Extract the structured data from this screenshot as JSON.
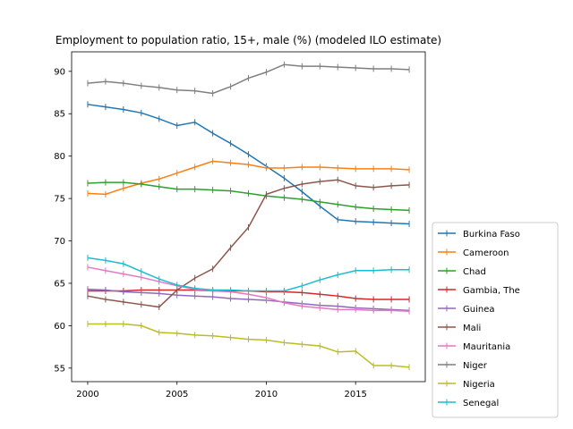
{
  "chart_data": {
    "type": "line",
    "title": "Employment to population ratio, 15+, male (%) (modeled ILO estimate)",
    "xlabel": "",
    "ylabel": "",
    "xlim": [
      1999.1,
      2018.9
    ],
    "ylim": [
      53.4,
      92.3
    ],
    "xticks": [
      2000,
      2005,
      2010,
      2015
    ],
    "yticks": [
      55,
      60,
      65,
      70,
      75,
      80,
      85,
      90
    ],
    "legend_position": "outside-right-bottom",
    "grid": false,
    "x": [
      2000,
      2001,
      2002,
      2003,
      2004,
      2005,
      2006,
      2007,
      2008,
      2009,
      2010,
      2011,
      2012,
      2013,
      2014,
      2015,
      2016,
      2017,
      2018
    ],
    "series": [
      {
        "name": "Burkina Faso",
        "color": "#1f77b4",
        "values": [
          86.1,
          85.8,
          85.5,
          85.1,
          84.4,
          83.6,
          84.0,
          82.7,
          81.5,
          80.2,
          78.8,
          77.4,
          75.8,
          74.1,
          72.5,
          72.3,
          72.2,
          72.1,
          72.0
        ]
      },
      {
        "name": "Cameroon",
        "color": "#ff7f0e",
        "values": [
          75.6,
          75.5,
          76.2,
          76.8,
          77.3,
          78.0,
          78.7,
          79.4,
          79.2,
          79.0,
          78.6,
          78.6,
          78.7,
          78.7,
          78.6,
          78.5,
          78.5,
          78.5,
          78.4
        ]
      },
      {
        "name": "Chad",
        "color": "#2ca02c",
        "values": [
          76.8,
          76.9,
          76.9,
          76.7,
          76.4,
          76.1,
          76.1,
          76.0,
          75.9,
          75.6,
          75.3,
          75.1,
          74.9,
          74.6,
          74.3,
          74.0,
          73.8,
          73.7,
          73.6
        ]
      },
      {
        "name": "Gambia, The",
        "color": "#d62728",
        "values": [
          64.1,
          64.1,
          64.1,
          64.2,
          64.2,
          64.2,
          64.2,
          64.1,
          64.1,
          64.1,
          64.0,
          64.0,
          63.9,
          63.7,
          63.5,
          63.2,
          63.1,
          63.1,
          63.1
        ]
      },
      {
        "name": "Guinea",
        "color": "#9467bd",
        "values": [
          64.3,
          64.2,
          64.0,
          63.9,
          63.8,
          63.6,
          63.5,
          63.4,
          63.2,
          63.1,
          63.0,
          62.8,
          62.6,
          62.4,
          62.3,
          62.1,
          62.0,
          61.9,
          61.8
        ]
      },
      {
        "name": "Mali",
        "color": "#8c564b",
        "values": [
          63.5,
          63.1,
          62.8,
          62.5,
          62.2,
          64.2,
          65.6,
          66.7,
          69.2,
          71.6,
          75.5,
          76.2,
          76.7,
          77.0,
          77.2,
          76.5,
          76.3,
          76.5,
          76.6
        ]
      },
      {
        "name": "Mauritania",
        "color": "#e377c2",
        "values": [
          66.9,
          66.5,
          66.1,
          65.7,
          65.2,
          64.7,
          64.3,
          64.1,
          64.0,
          63.7,
          63.3,
          62.7,
          62.3,
          62.1,
          61.9,
          61.9,
          61.8,
          61.8,
          61.7
        ]
      },
      {
        "name": "Niger",
        "color": "#7f7f7f",
        "values": [
          88.6,
          88.8,
          88.6,
          88.3,
          88.1,
          87.8,
          87.7,
          87.4,
          88.2,
          89.2,
          89.9,
          90.8,
          90.6,
          90.6,
          90.5,
          90.4,
          90.3,
          90.3,
          90.2
        ]
      },
      {
        "name": "Nigeria",
        "color": "#bcbd22",
        "values": [
          60.2,
          60.2,
          60.2,
          60.0,
          59.2,
          59.1,
          58.9,
          58.8,
          58.6,
          58.4,
          58.3,
          58.0,
          57.8,
          57.6,
          56.9,
          57.0,
          55.3,
          55.3,
          55.1
        ]
      },
      {
        "name": "Senegal",
        "color": "#17becf",
        "values": [
          68.0,
          67.7,
          67.3,
          66.4,
          65.5,
          64.8,
          64.4,
          64.2,
          64.2,
          64.1,
          64.1,
          64.1,
          64.7,
          65.4,
          66.0,
          66.5,
          66.5,
          66.6,
          66.6
        ]
      }
    ]
  }
}
